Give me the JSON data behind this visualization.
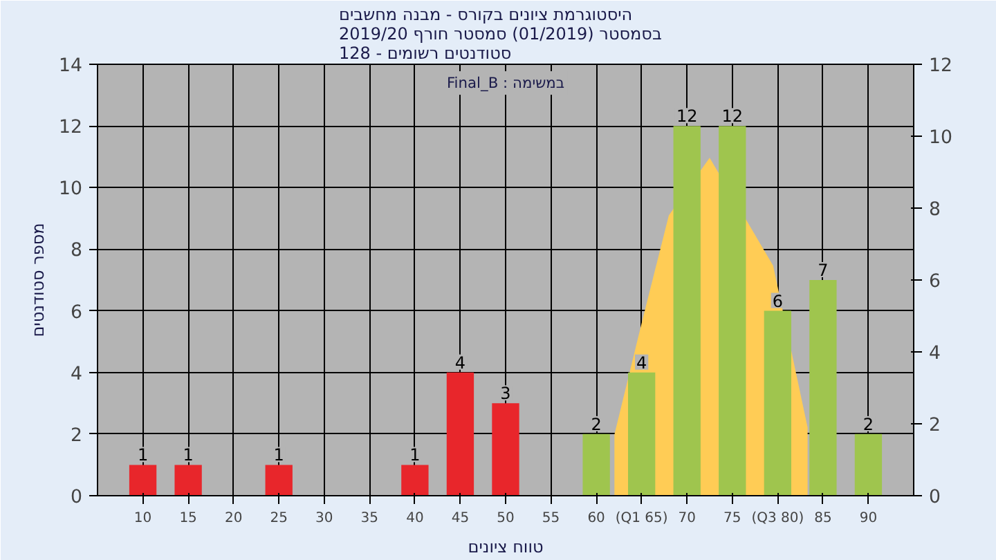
{
  "chart_data": {
    "type": "bar",
    "title": "היסטוגרמת ציונים בקורס - מבנה מחשבים\nבסמסטר  (01/2019)  סמסטר חורף 2019/20\nסטודנטים רשומים - 128",
    "xlabel": "טווח ציונים",
    "ylabel": "מספר סטודנטים",
    "annotations": [
      "Final_B : במשימה"
    ],
    "x": [
      10,
      15,
      25,
      40,
      45,
      50,
      60,
      65,
      70,
      75,
      80,
      85,
      90
    ],
    "xlim": [
      5,
      95
    ],
    "xticks": [
      10,
      15,
      20,
      25,
      30,
      35,
      40,
      45,
      50,
      55,
      60,
      {
        "value": 65,
        "label": "(Q1 65)"
      },
      70,
      75,
      {
        "value": 80,
        "label": "(Q3 80)"
      },
      85,
      90
    ],
    "ylim": [
      0,
      14
    ],
    "yticks": [
      0,
      2,
      4,
      6,
      8,
      10,
      12,
      14
    ],
    "y2lim": [
      0,
      12
    ],
    "y2ticks": [
      0,
      2,
      4,
      6,
      8,
      10,
      12
    ],
    "grid": true,
    "series": [
      {
        "type": "area",
        "axis": "y2",
        "color": "#ffcc55",
        "x": [
          62,
          65,
          68,
          72.5,
          79.5,
          83.3
        ],
        "values": [
          1.7,
          4.8,
          7.8,
          9.4,
          6.4,
          1.9
        ]
      },
      {
        "values": [
          1,
          1,
          1,
          1,
          4,
          3,
          2,
          4,
          12,
          12,
          6,
          7,
          2
        ],
        "value_labels": [
          "1",
          "1",
          "1",
          "1",
          "4",
          "3",
          "2",
          "4",
          "12",
          "12",
          "6",
          "7",
          "2"
        ],
        "colors": [
          "#e8262b",
          "#e8262b",
          "#e8262b",
          "#e8262b",
          "#e8262b",
          "#e8262b",
          "#9fc54e",
          "#9fc54e",
          "#9fc54e",
          "#9fc54e",
          "#9fc54e",
          "#9fc54e",
          "#9fc54e"
        ]
      }
    ]
  }
}
